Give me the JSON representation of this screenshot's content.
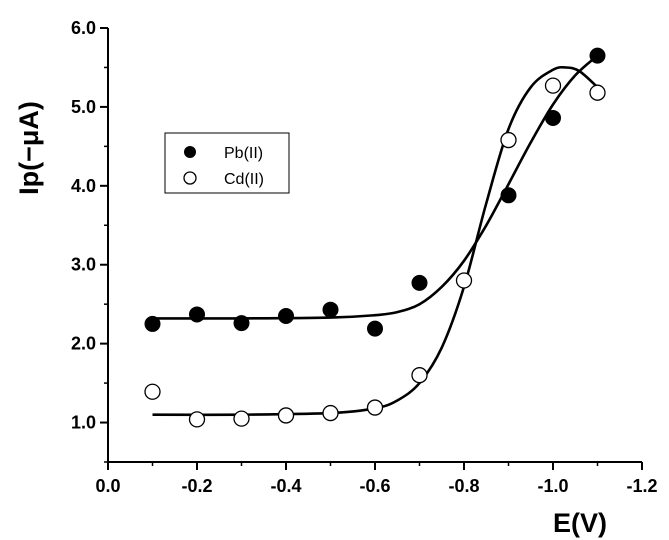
{
  "chart_data": {
    "type": "scatter",
    "xlabel": "E(V)",
    "ylabel": "Ip(−μA)",
    "xlim": [
      0.0,
      -1.2
    ],
    "ylim": [
      0.5,
      6.0
    ],
    "x_ticks": [
      0.0,
      -0.2,
      -0.4,
      -0.6,
      -0.8,
      -1.0,
      -1.2
    ],
    "x_tick_labels": [
      "0.0",
      "-0.2",
      "-0.4",
      "-0.6",
      "-0.8",
      "-1.0",
      "-1.2"
    ],
    "y_ticks": [
      1.0,
      2.0,
      3.0,
      4.0,
      5.0,
      6.0
    ],
    "y_tick_labels": [
      "1.0",
      "2.0",
      "3.0",
      "4.0",
      "5.0",
      "6.0"
    ],
    "grid": false,
    "legend_position": "left-middle",
    "series": [
      {
        "name": "Pb(II)",
        "marker": "filled-circle",
        "color": "#000000",
        "x": [
          -0.1,
          -0.2,
          -0.3,
          -0.4,
          -0.5,
          -0.6,
          -0.7,
          -0.9,
          -1.0,
          -1.1
        ],
        "y": [
          2.25,
          2.37,
          2.26,
          2.35,
          2.43,
          2.19,
          2.77,
          3.88,
          4.86,
          5.65
        ],
        "fit": {
          "x": [
            -0.1,
            -0.3,
            -0.5,
            -0.6,
            -0.65,
            -0.7,
            -0.75,
            -0.8,
            -0.85,
            -0.9,
            -0.95,
            -1.0,
            -1.05,
            -1.1
          ],
          "y": [
            2.32,
            2.32,
            2.33,
            2.36,
            2.4,
            2.5,
            2.72,
            3.05,
            3.5,
            4.02,
            4.55,
            5.03,
            5.4,
            5.65
          ]
        }
      },
      {
        "name": "Cd(II)",
        "marker": "open-circle",
        "color": "#000000",
        "x": [
          -0.1,
          -0.2,
          -0.3,
          -0.4,
          -0.5,
          -0.6,
          -0.7,
          -0.8,
          -0.9,
          -1.0,
          -1.1
        ],
        "y": [
          1.39,
          1.04,
          1.05,
          1.09,
          1.12,
          1.19,
          1.6,
          2.8,
          4.58,
          5.27,
          5.18
        ],
        "fit": {
          "x": [
            -0.1,
            -0.3,
            -0.5,
            -0.6,
            -0.65,
            -0.7,
            -0.75,
            -0.8,
            -0.85,
            -0.9,
            -0.95,
            -1.0,
            -1.03,
            -1.06,
            -1.1
          ],
          "y": [
            1.1,
            1.1,
            1.12,
            1.18,
            1.28,
            1.5,
            1.95,
            2.72,
            3.78,
            4.72,
            5.25,
            5.47,
            5.5,
            5.45,
            5.25
          ]
        }
      }
    ]
  }
}
